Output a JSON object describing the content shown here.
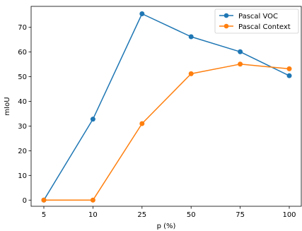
{
  "chart_data": {
    "type": "line",
    "title": "",
    "xlabel": "p (%)",
    "ylabel": "mIoU",
    "categories": [
      "5",
      "10",
      "25",
      "50",
      "75",
      "100"
    ],
    "yticks": [
      0,
      10,
      20,
      30,
      40,
      50,
      60,
      70
    ],
    "ylim": [
      -2.5,
      78.5
    ],
    "grid": false,
    "legend_position": "top-right",
    "series": [
      {
        "name": "Pascal VOC",
        "color": "#1f77b4",
        "values": [
          0,
          32.8,
          75.5,
          66.2,
          60.1,
          50.4
        ]
      },
      {
        "name": "Pascal Context",
        "color": "#ff7f0e",
        "values": [
          0,
          0,
          31.0,
          51.2,
          55.1,
          53.2
        ]
      }
    ]
  }
}
